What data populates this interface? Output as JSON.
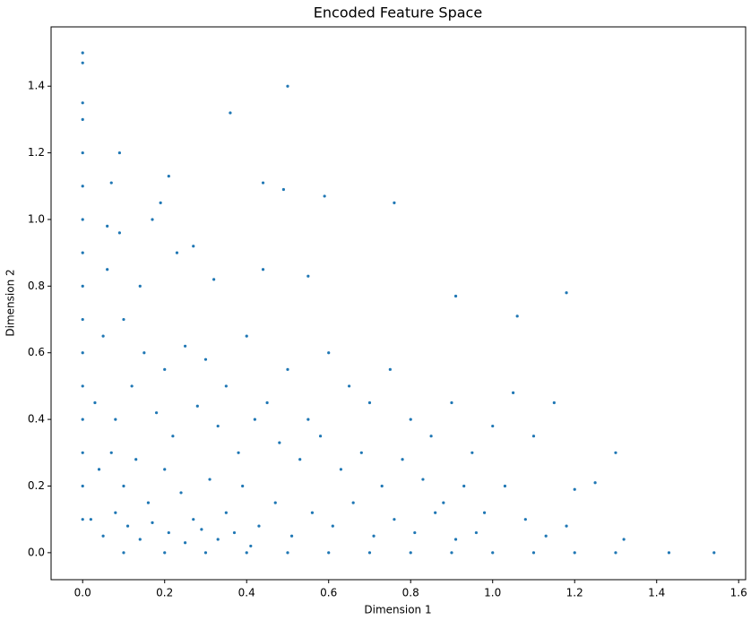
{
  "chart_data": {
    "type": "scatter",
    "title": "Encoded Feature Space",
    "x_label": "Dimension 1",
    "y_label": "Dimension 2",
    "color": "#1f77b4",
    "x": [
      0,
      0,
      0,
      0,
      0,
      0,
      0,
      0,
      0,
      0,
      0,
      0,
      0,
      0,
      0,
      0,
      0.1,
      0.2,
      0.3,
      0.4,
      0.5,
      0.6,
      0.7,
      0.8,
      0.9,
      1.0,
      1.1,
      1.2,
      1.3,
      1.43,
      1.54,
      0.5,
      0.36,
      0.09,
      0.21,
      0.07,
      0.44,
      0.49,
      0.59,
      0.76,
      0.19,
      0.17,
      0.06,
      0.09,
      1.18,
      0.91,
      1.06,
      1.3,
      1.32,
      0.05,
      0.1,
      0.15,
      0.2,
      0.25,
      0.3,
      0.35,
      0.4,
      0.45,
      0.5,
      0.55,
      0.6,
      0.65,
      0.7,
      0.75,
      0.8,
      0.85,
      0.9,
      0.95,
      1.0,
      1.05,
      1.1,
      1.15,
      1.2,
      1.25,
      0.03,
      0.08,
      0.12,
      0.18,
      0.22,
      0.28,
      0.33,
      0.38,
      0.42,
      0.48,
      0.53,
      0.58,
      0.63,
      0.68,
      0.73,
      0.78,
      0.83,
      0.88,
      0.93,
      0.98,
      1.03,
      1.08,
      1.13,
      1.18,
      0.04,
      0.07,
      0.1,
      0.13,
      0.16,
      0.2,
      0.24,
      0.27,
      0.31,
      0.35,
      0.39,
      0.43,
      0.47,
      0.51,
      0.56,
      0.61,
      0.66,
      0.71,
      0.76,
      0.81,
      0.86,
      0.91,
      0.96,
      0.02,
      0.05,
      0.08,
      0.11,
      0.14,
      0.17,
      0.21,
      0.25,
      0.29,
      0.33,
      0.37,
      0.41,
      0.06,
      0.14,
      0.23,
      0.32,
      0.44,
      0.55,
      0.27
    ],
    "values": [
      1.5,
      1.47,
      1.35,
      1.3,
      1.2,
      1.1,
      1.0,
      0.9,
      0.8,
      0.7,
      0.6,
      0.5,
      0.4,
      0.3,
      0.2,
      0.1,
      0,
      0,
      0,
      0,
      0,
      0,
      0,
      0,
      0,
      0,
      0,
      0,
      0,
      0,
      0,
      1.4,
      1.32,
      1.2,
      1.13,
      1.11,
      1.11,
      1.09,
      1.07,
      1.05,
      1.05,
      1.0,
      0.98,
      0.96,
      0.78,
      0.77,
      0.71,
      0.3,
      0.04,
      0.65,
      0.7,
      0.6,
      0.55,
      0.62,
      0.58,
      0.5,
      0.65,
      0.45,
      0.55,
      0.4,
      0.6,
      0.5,
      0.45,
      0.55,
      0.4,
      0.35,
      0.45,
      0.3,
      0.38,
      0.48,
      0.35,
      0.45,
      0.19,
      0.21,
      0.45,
      0.4,
      0.5,
      0.42,
      0.35,
      0.44,
      0.38,
      0.3,
      0.4,
      0.33,
      0.28,
      0.35,
      0.25,
      0.3,
      0.2,
      0.28,
      0.22,
      0.15,
      0.2,
      0.12,
      0.2,
      0.1,
      0.05,
      0.08,
      0.25,
      0.3,
      0.2,
      0.28,
      0.15,
      0.25,
      0.18,
      0.1,
      0.22,
      0.12,
      0.2,
      0.08,
      0.15,
      0.05,
      0.12,
      0.08,
      0.15,
      0.05,
      0.1,
      0.06,
      0.12,
      0.04,
      0.06,
      0.1,
      0.05,
      0.12,
      0.08,
      0.04,
      0.09,
      0.06,
      0.03,
      0.07,
      0.04,
      0.06,
      0.02,
      0.85,
      0.8,
      0.9,
      0.82,
      0.85,
      0.83,
      0.92
    ],
    "xlim": [
      -0.077,
      1.617
    ],
    "ylim": [
      -0.081,
      1.578
    ],
    "xticks": [
      {
        "value": 0,
        "label": "0.0"
      },
      0.2,
      0.4,
      0.6,
      0.8,
      {
        "value": 1,
        "label": "1.0"
      },
      1.2,
      1.4,
      1.6
    ],
    "yticks": [
      {
        "value": 0,
        "label": "0.0"
      },
      0.2,
      0.4,
      0.6,
      0.8,
      {
        "value": 1,
        "label": "1.0"
      },
      1.2,
      1.4
    ]
  }
}
